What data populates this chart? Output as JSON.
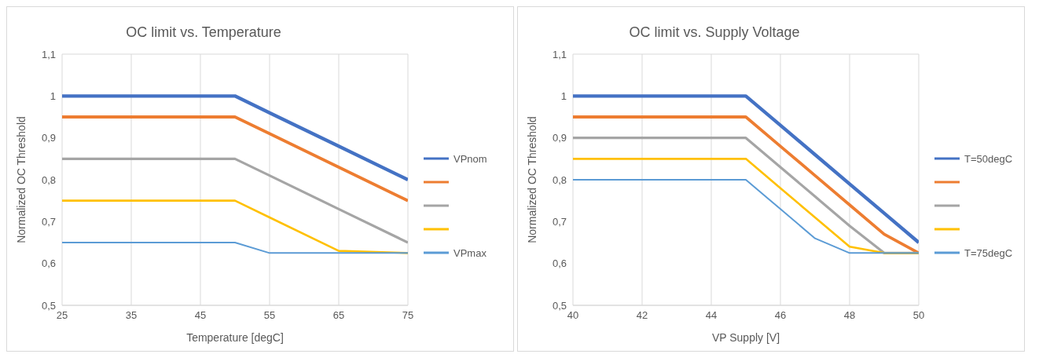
{
  "chart_data": [
    {
      "type": "line",
      "title": "OC limit vs. Temperature",
      "xlabel": "Temperature [degC]",
      "ylabel": "Normalized OC Threshold",
      "x": [
        25,
        50,
        55,
        65,
        75
      ],
      "xlim": [
        25,
        75
      ],
      "xticks": [
        25,
        35,
        45,
        55,
        65,
        75
      ],
      "ylim": [
        0.5,
        1.1
      ],
      "yticks": [
        {
          "value": 0.5,
          "label": "0,5"
        },
        {
          "value": 0.6,
          "label": "0,6"
        },
        {
          "value": 0.7,
          "label": "0,7"
        },
        {
          "value": 0.8,
          "label": "0,8"
        },
        {
          "value": 0.9,
          "label": "0,9"
        },
        {
          "value": 1,
          "label": "1"
        },
        {
          "value": 1.1,
          "label": "1,1"
        }
      ],
      "grid": true,
      "legend": "right",
      "marker": "none",
      "line_style": "solid",
      "series": [
        {
          "name": "VPnom",
          "color": "#4472c4",
          "values": [
            1,
            1,
            0.96,
            0.88,
            0.8
          ]
        },
        {
          "color": "#ed7d31",
          "values": [
            0.95,
            0.95,
            0.91,
            0.83,
            0.75
          ]
        },
        {
          "color": "#a5a5a5",
          "values": [
            0.85,
            0.85,
            0.81,
            0.73,
            0.65
          ]
        },
        {
          "color": "#ffc000",
          "values": [
            0.75,
            0.75,
            0.71,
            0.63,
            0.625
          ]
        },
        {
          "name": "VPmax",
          "color": "#5b9bd5",
          "values": [
            0.65,
            0.65,
            0.625,
            0.625,
            0.625
          ]
        }
      ]
    },
    {
      "type": "line",
      "title": "OC limit vs. Supply Voltage",
      "xlabel": "VP Supply [V]",
      "ylabel": "Normalized OC Threshold",
      "x": [
        40,
        45,
        46,
        47,
        48,
        49,
        50
      ],
      "xlim": [
        40,
        50
      ],
      "xticks": [
        40,
        42,
        44,
        46,
        48,
        50
      ],
      "ylim": [
        0.5,
        1.1
      ],
      "yticks": [
        {
          "value": 0.5,
          "label": "0,5"
        },
        {
          "value": 0.6,
          "label": "0,6"
        },
        {
          "value": 0.7,
          "label": "0,7"
        },
        {
          "value": 0.8,
          "label": "0,8"
        },
        {
          "value": 0.9,
          "label": "0,9"
        },
        {
          "value": 1,
          "label": "1"
        },
        {
          "value": 1.1,
          "label": "1,1"
        }
      ],
      "grid": true,
      "legend": "right",
      "marker": "none",
      "line_style": "solid",
      "series": [
        {
          "name": "T=50degC",
          "color": "#4472c4",
          "values": [
            1,
            1,
            0.93,
            0.86,
            0.79,
            0.72,
            0.65
          ]
        },
        {
          "color": "#ed7d31",
          "values": [
            0.95,
            0.95,
            0.88,
            0.81,
            0.74,
            0.67,
            0.625
          ]
        },
        {
          "color": "#a5a5a5",
          "values": [
            0.9,
            0.9,
            0.83,
            0.76,
            0.69,
            0.625,
            0.625
          ]
        },
        {
          "color": "#ffc000",
          "values": [
            0.85,
            0.85,
            0.78,
            0.71,
            0.64,
            0.625,
            0.625
          ]
        },
        {
          "name": "T=75degC",
          "color": "#5b9bd5",
          "values": [
            0.8,
            0.8,
            0.73,
            0.66,
            0.625,
            0.625,
            0.625
          ]
        }
      ]
    }
  ]
}
